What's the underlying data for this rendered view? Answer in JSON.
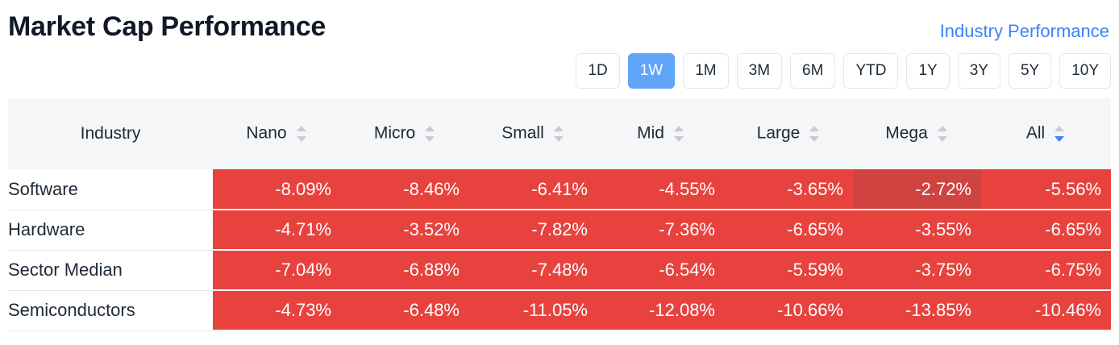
{
  "header": {
    "title": "Market Cap Performance",
    "link": "Industry Performance"
  },
  "periods": [
    "1D",
    "1W",
    "1M",
    "3M",
    "6M",
    "YTD",
    "1Y",
    "3Y",
    "5Y",
    "10Y"
  ],
  "active_period": "1W",
  "table": {
    "columns": [
      "Industry",
      "Nano",
      "Micro",
      "Small",
      "Mid",
      "Large",
      "Mega",
      "All"
    ],
    "sorted_column": "All",
    "rows": [
      {
        "name": "Software",
        "values": [
          "-8.09%",
          "-8.46%",
          "-6.41%",
          "-4.55%",
          "-3.65%",
          "-2.72%",
          "-5.56%"
        ]
      },
      {
        "name": "Hardware",
        "values": [
          "-4.71%",
          "-3.52%",
          "-7.82%",
          "-7.36%",
          "-6.65%",
          "-3.55%",
          "-6.65%"
        ]
      },
      {
        "name": "Sector Median",
        "values": [
          "-7.04%",
          "-6.88%",
          "-7.48%",
          "-6.54%",
          "-5.59%",
          "-3.75%",
          "-6.75%"
        ]
      },
      {
        "name": "Semiconductors",
        "values": [
          "-4.73%",
          "-6.48%",
          "-11.05%",
          "-12.08%",
          "-10.66%",
          "-13.85%",
          "-10.46%"
        ]
      }
    ]
  },
  "colors": {
    "accent": "#60a5fa",
    "link": "#3b82f6",
    "negative_cell": "#e8423e",
    "hovered_cell": "#cf4340"
  }
}
